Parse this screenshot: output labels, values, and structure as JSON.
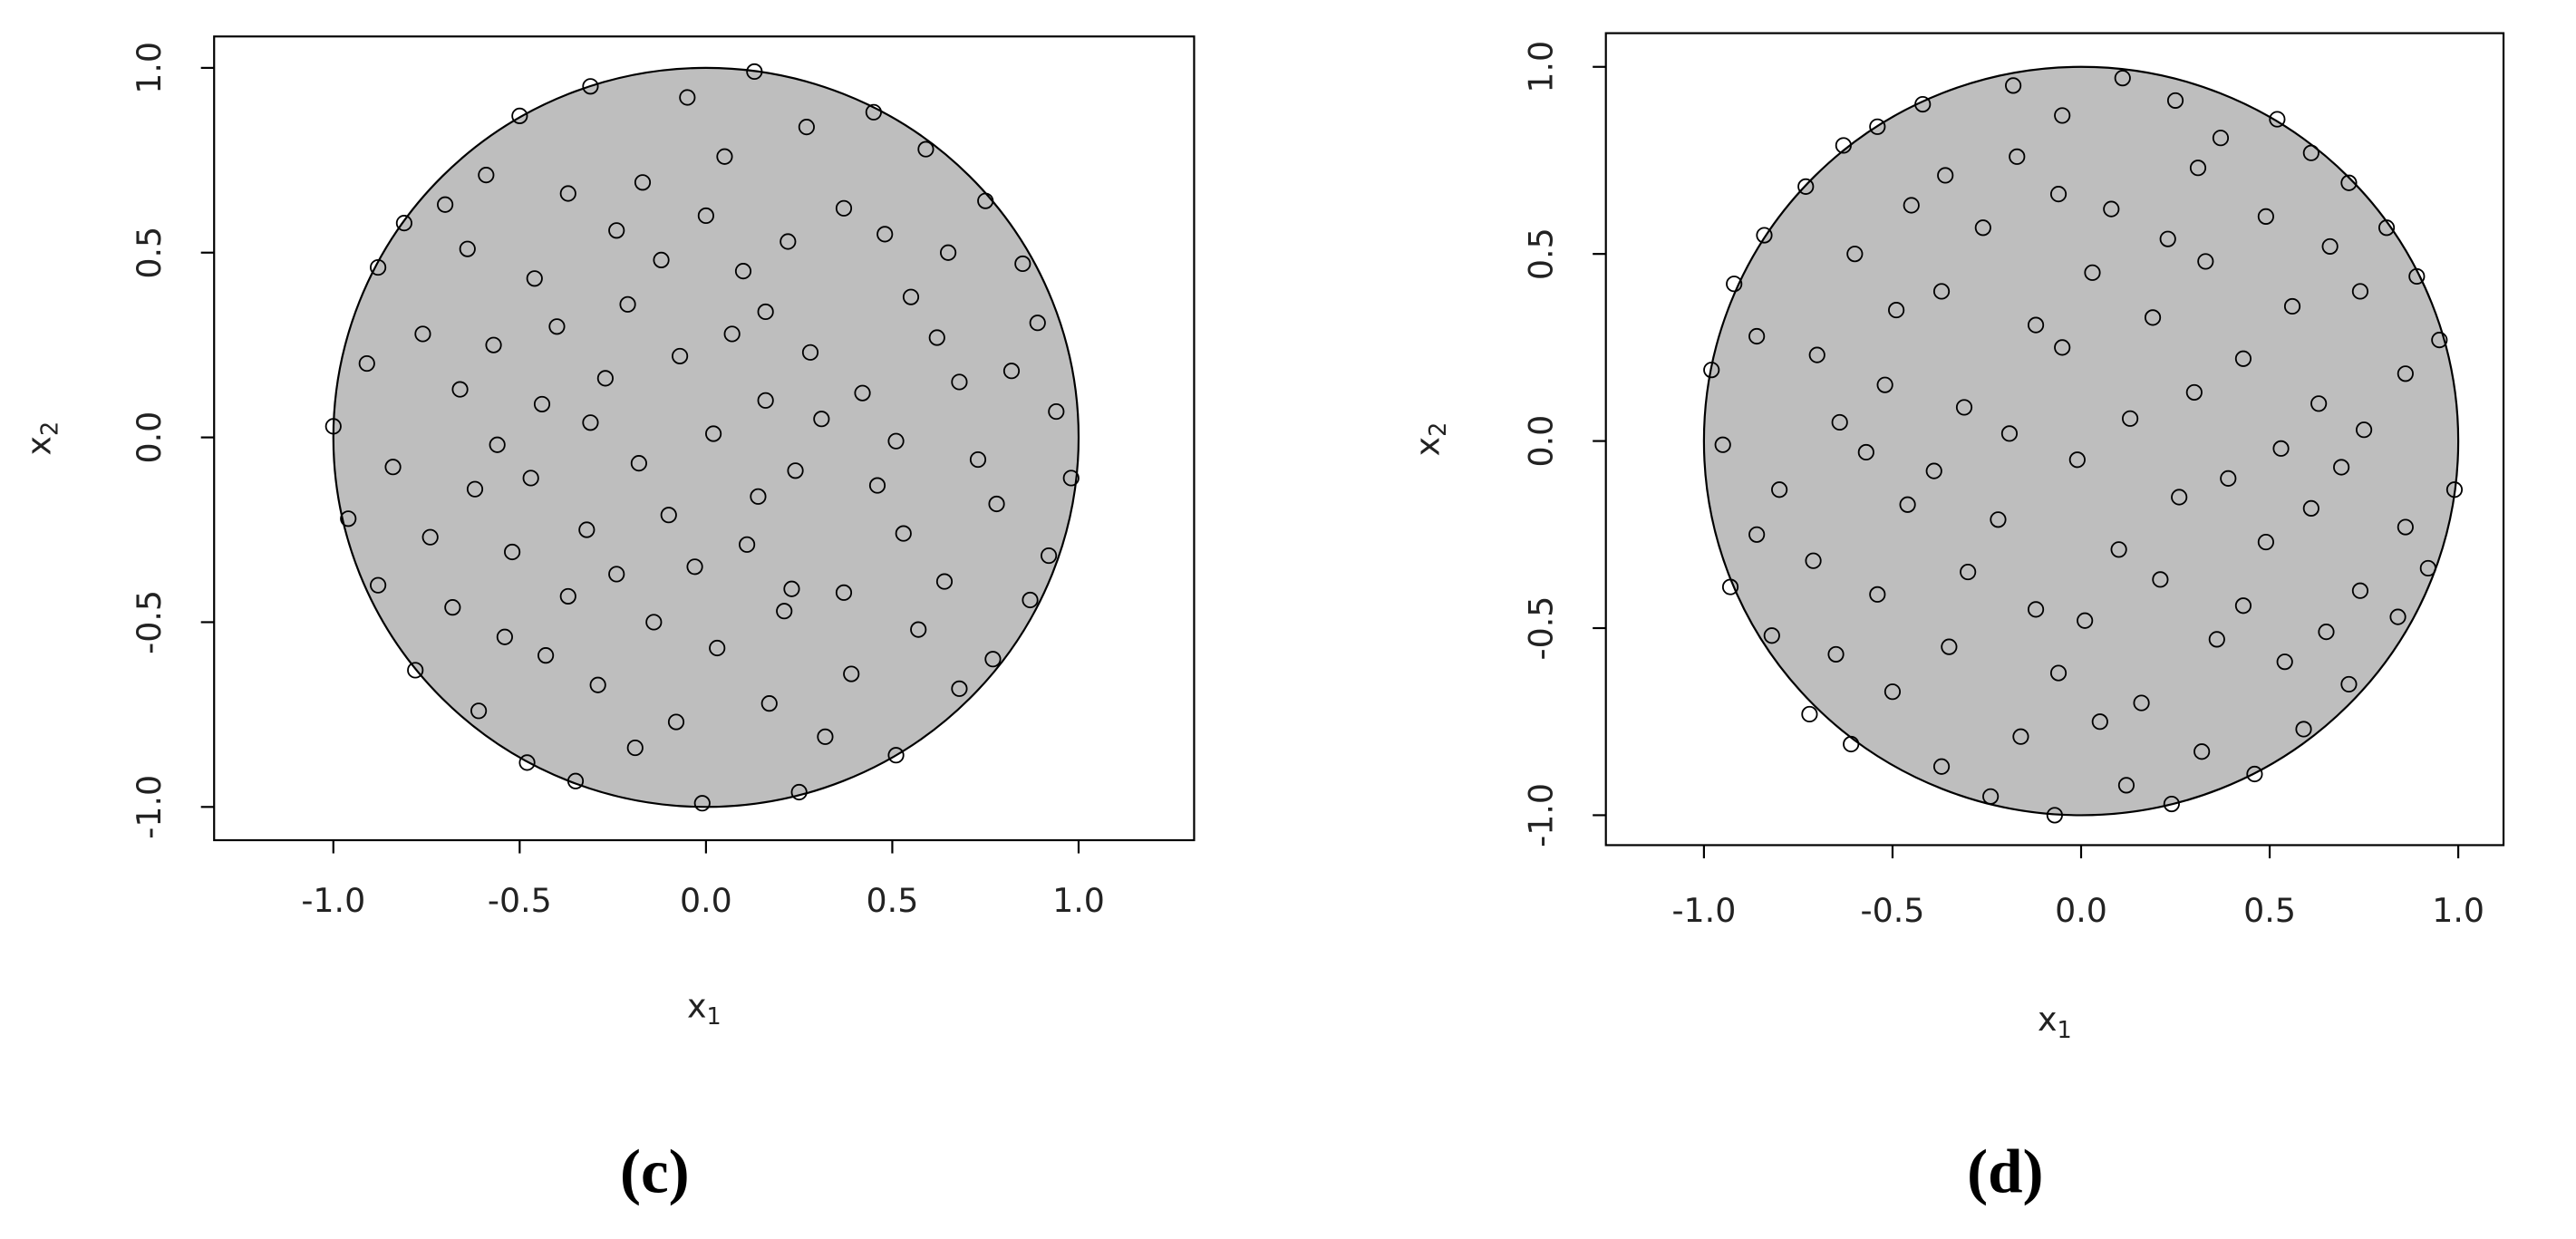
{
  "chart_data": [
    {
      "type": "scatter",
      "panel_label": "(c)",
      "xlabel": {
        "text": "x",
        "sub": "1"
      },
      "ylabel": {
        "text": "x",
        "sub": "2"
      },
      "region_radius": 1,
      "region_color": "#bebebe",
      "point_color": "#000000",
      "xlim": [
        -1.32,
        1.31
      ],
      "ylim": [
        -1.09,
        1.085
      ],
      "xticks": [
        {
          "value": -1,
          "label": "-1.0"
        },
        {
          "value": -0.5,
          "label": "-0.5"
        },
        {
          "value": 0,
          "label": "0.0"
        },
        {
          "value": 0.5,
          "label": "0.5"
        },
        {
          "value": 1,
          "label": "1.0"
        }
      ],
      "yticks": [
        {
          "value": -1,
          "label": "-1.0"
        },
        {
          "value": -0.5,
          "label": "-0.5"
        },
        {
          "value": 0,
          "label": "0.0"
        },
        {
          "value": 0.5,
          "label": "0.5"
        },
        {
          "value": 1,
          "label": "1.0"
        }
      ],
      "x": [
        0.13,
        -0.31,
        -0.05,
        -0.5,
        0.45,
        0.27,
        0.59,
        -0.59,
        -0.7,
        -0.17,
        -0.37,
        0.05,
        0.75,
        -0.81,
        -0.24,
        0,
        0.37,
        0.48,
        0.65,
        -0.88,
        -0.64,
        -0.12,
        0.85,
        -0.46,
        0.22,
        0.1,
        0.55,
        0.16,
        0.89,
        -0.91,
        -0.76,
        -0.57,
        -0.4,
        -0.21,
        -0.07,
        0.07,
        0.28,
        0.62,
        0.82,
        -0.27,
        -0.66,
        -0.44,
        0.42,
        0.68,
        0.16,
        0.31,
        0.94,
        -1,
        -0.31,
        0.02,
        -0.56,
        0.51,
        -0.84,
        -0.18,
        0.24,
        0.73,
        -0.62,
        0.98,
        -0.47,
        0.14,
        -0.32,
        0.78,
        -0.96,
        -0.74,
        -0.1,
        -0.52,
        -0.24,
        0.11,
        0.53,
        0.92,
        -0.88,
        -0.03,
        -0.37,
        0.64,
        0.23,
        -0.68,
        -0.14,
        0.87,
        -0.54,
        0.57,
        -0.43,
        -0.78,
        0.77,
        -0.29,
        0.03,
        0.39,
        -0.61,
        -0.08,
        0.68,
        0.17,
        -0.19,
        0.32,
        0.51,
        -0.48,
        -0.35,
        -0.01,
        0.25,
        0.46,
        0.37,
        0.21
      ],
      "y": [
        0.99,
        0.95,
        0.92,
        0.87,
        0.88,
        0.84,
        0.78,
        0.71,
        0.63,
        0.69,
        0.66,
        0.76,
        0.64,
        0.58,
        0.56,
        0.6,
        0.62,
        0.55,
        0.5,
        0.46,
        0.51,
        0.48,
        0.47,
        0.43,
        0.53,
        0.45,
        0.38,
        0.34,
        0.31,
        0.2,
        0.28,
        0.25,
        0.3,
        0.36,
        0.22,
        0.28,
        0.23,
        0.27,
        0.18,
        0.16,
        0.13,
        0.09,
        0.12,
        0.15,
        0.1,
        0.05,
        0.07,
        0.03,
        0.04,
        0.01,
        -0.02,
        -0.01,
        -0.08,
        -0.07,
        -0.09,
        -0.06,
        -0.14,
        -0.11,
        -0.11,
        -0.16,
        -0.25,
        -0.18,
        -0.22,
        -0.27,
        -0.21,
        -0.31,
        -0.37,
        -0.29,
        -0.26,
        -0.32,
        -0.4,
        -0.35,
        -0.43,
        -0.39,
        -0.41,
        -0.46,
        -0.5,
        -0.44,
        -0.54,
        -0.52,
        -0.59,
        -0.63,
        -0.6,
        -0.67,
        -0.57,
        -0.64,
        -0.74,
        -0.77,
        -0.68,
        -0.72,
        -0.84,
        -0.81,
        -0.86,
        -0.88,
        -0.93,
        -0.99,
        -0.96,
        -0.13,
        -0.42,
        -0.47
      ]
    },
    {
      "type": "scatter",
      "panel_label": "(d)",
      "xlabel": {
        "text": "x",
        "sub": "1"
      },
      "ylabel": {
        "text": "x",
        "sub": "2"
      },
      "region_radius": 1,
      "region_color": "#bebebe",
      "point_color": "#000000",
      "xlim": [
        -1.26,
        1.12
      ],
      "ylim": [
        -1.08,
        1.09
      ],
      "xticks": [
        {
          "value": -1,
          "label": "-1.0"
        },
        {
          "value": -0.5,
          "label": "-0.5"
        },
        {
          "value": 0,
          "label": "0.0"
        },
        {
          "value": 0.5,
          "label": "0.5"
        },
        {
          "value": 1,
          "label": "1.0"
        }
      ],
      "yticks": [
        {
          "value": -1,
          "label": "-1.0"
        },
        {
          "value": -0.5,
          "label": "-0.5"
        },
        {
          "value": 0,
          "label": "0.0"
        },
        {
          "value": 0.5,
          "label": "0.5"
        },
        {
          "value": 1,
          "label": "1.0"
        }
      ],
      "x": [
        0.11,
        -0.18,
        0.25,
        -0.05,
        -0.42,
        -0.54,
        -0.63,
        0.52,
        0.37,
        0.61,
        -0.73,
        -0.36,
        -0.17,
        0.31,
        0.71,
        -0.06,
        0.08,
        -0.45,
        -0.26,
        0.49,
        -0.84,
        0.23,
        0.66,
        0.81,
        -0.6,
        0.33,
        0.03,
        0.89,
        -0.92,
        -0.37,
        0.74,
        0.56,
        -0.49,
        0.19,
        -0.12,
        -0.86,
        -0.05,
        0.95,
        0.43,
        -0.7,
        0.86,
        -0.98,
        -0.52,
        0.3,
        -0.31,
        0.63,
        -0.19,
        -0.64,
        0.13,
        0.75,
        -0.95,
        -0.57,
        0.53,
        -0.01,
        -0.39,
        0.69,
        0.39,
        -0.8,
        0.99,
        0.26,
        -0.46,
        0.61,
        -0.22,
        -0.86,
        0.86,
        0.49,
        0.1,
        -0.71,
        -0.3,
        0.92,
        0.21,
        -0.93,
        0.74,
        -0.54,
        0.43,
        -0.12,
        -0.82,
        0.01,
        -0.35,
        0.84,
        0.65,
        0.36,
        -0.65,
        0.54,
        -0.06,
        -0.5,
        0.71,
        0.16,
        -0.72,
        0.05,
        0.59,
        -0.16,
        -0.61,
        0.32,
        -0.37,
        0.46,
        0.12,
        -0.24,
        0.24,
        -0.07
      ],
      "y": [
        0.97,
        0.95,
        0.91,
        0.87,
        0.9,
        0.84,
        0.79,
        0.86,
        0.81,
        0.77,
        0.68,
        0.71,
        0.76,
        0.73,
        0.69,
        0.66,
        0.62,
        0.63,
        0.57,
        0.6,
        0.55,
        0.54,
        0.52,
        0.57,
        0.5,
        0.48,
        0.45,
        0.44,
        0.42,
        0.4,
        0.4,
        0.36,
        0.35,
        0.33,
        0.31,
        0.28,
        0.25,
        0.27,
        0.22,
        0.23,
        0.18,
        0.19,
        0.15,
        0.13,
        0.09,
        0.1,
        0.02,
        0.05,
        0.06,
        0.03,
        -0.01,
        -0.03,
        -0.02,
        -0.05,
        -0.08,
        -0.07,
        -0.1,
        -0.13,
        -0.13,
        -0.15,
        -0.17,
        -0.18,
        -0.21,
        -0.25,
        -0.23,
        -0.27,
        -0.29,
        -0.32,
        -0.35,
        -0.34,
        -0.37,
        -0.39,
        -0.4,
        -0.41,
        -0.44,
        -0.45,
        -0.52,
        -0.48,
        -0.55,
        -0.47,
        -0.51,
        -0.53,
        -0.57,
        -0.59,
        -0.62,
        -0.67,
        -0.65,
        -0.7,
        -0.73,
        -0.75,
        -0.77,
        -0.79,
        -0.81,
        -0.83,
        -0.87,
        -0.89,
        -0.92,
        -0.95,
        -0.97,
        -1
      ]
    }
  ]
}
